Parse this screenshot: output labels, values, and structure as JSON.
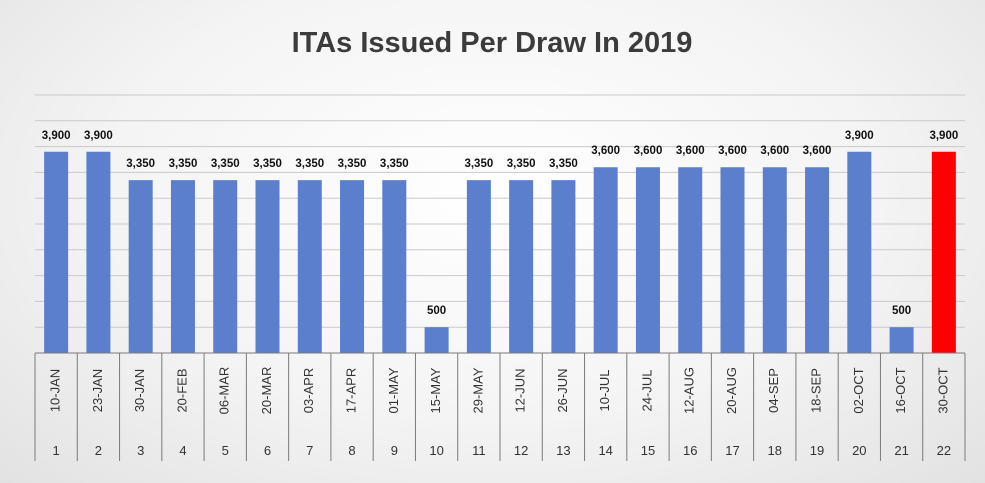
{
  "chart_data": {
    "type": "bar",
    "title": "ITAs Issued Per Draw In 2019",
    "categories": [
      "10-JAN",
      "23-JAN",
      "30-JAN",
      "20-FEB",
      "06-MAR",
      "20-MAR",
      "03-APR",
      "17-APR",
      "01-MAY",
      "15-MAY",
      "29-MAY",
      "12-JUN",
      "26-JUN",
      "10-JUL",
      "24-JUL",
      "12-AUG",
      "20-AUG",
      "04-SEP",
      "18-SEP",
      "02-OCT",
      "16-OCT",
      "30-OCT"
    ],
    "draw_numbers": [
      "1",
      "2",
      "3",
      "4",
      "5",
      "6",
      "7",
      "8",
      "9",
      "10",
      "11",
      "12",
      "13",
      "14",
      "15",
      "16",
      "17",
      "18",
      "19",
      "20",
      "21",
      "22"
    ],
    "values": [
      3900,
      3900,
      3350,
      3350,
      3350,
      3350,
      3350,
      3350,
      3350,
      500,
      3350,
      3350,
      3350,
      3600,
      3600,
      3600,
      3600,
      3600,
      3600,
      3900,
      500,
      3900
    ],
    "value_labels": [
      "3,900",
      "3,900",
      "3,350",
      "3,350",
      "3,350",
      "3,350",
      "3,350",
      "3,350",
      "3,350",
      "500",
      "3,350",
      "3,350",
      "3,350",
      "3,600",
      "3,600",
      "3,600",
      "3,600",
      "3,600",
      "3,600",
      "3,900",
      "500",
      "3,900"
    ],
    "ylim": [
      0,
      5000
    ],
    "grid": true,
    "colors": {
      "default": "#5b7fcc",
      "highlight": "#ff0000"
    },
    "highlight_index": 21
  }
}
